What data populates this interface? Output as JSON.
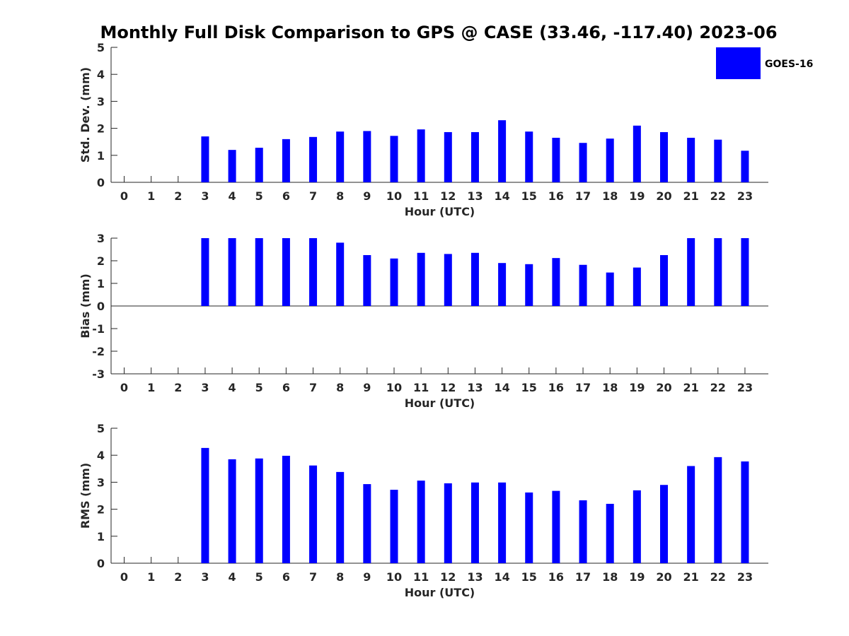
{
  "chart_data": {
    "title": "Monthly Full Disk Comparison to GPS @ CASE (33.46, -117.40) 2023-06",
    "legend": {
      "label": "GOES-16",
      "color": "#0000ff",
      "placement": "top-right"
    },
    "bar_color": "#0000ff",
    "panels": [
      {
        "type": "bar",
        "xlabel": "Hour (UTC)",
        "ylabel": "Std. Dev. (mm)",
        "ylim": [
          0,
          5
        ],
        "yticks": [
          0,
          1,
          2,
          3,
          4,
          5
        ],
        "categories": [
          "0",
          "1",
          "2",
          "3",
          "4",
          "5",
          "6",
          "7",
          "8",
          "9",
          "10",
          "11",
          "12",
          "13",
          "14",
          "15",
          "16",
          "17",
          "18",
          "19",
          "20",
          "21",
          "22",
          "23"
        ],
        "series": [
          {
            "name": "GOES-16",
            "values": [
              null,
              null,
              null,
              1.7,
              1.2,
              1.28,
              1.6,
              1.68,
              1.88,
              1.9,
              1.72,
              1.96,
              1.86,
              1.86,
              2.3,
              1.88,
              1.65,
              1.46,
              1.62,
              2.1,
              1.86,
              1.65,
              1.58,
              1.17
            ]
          }
        ]
      },
      {
        "type": "bar",
        "xlabel": "Hour (UTC)",
        "ylabel": "Bias (mm)",
        "ylim": [
          -3,
          3
        ],
        "yticks": [
          -3,
          -2,
          -1,
          0,
          1,
          2,
          3
        ],
        "categories": [
          "0",
          "1",
          "2",
          "3",
          "4",
          "5",
          "6",
          "7",
          "8",
          "9",
          "10",
          "11",
          "12",
          "13",
          "14",
          "15",
          "16",
          "17",
          "18",
          "19",
          "20",
          "21",
          "22",
          "23"
        ],
        "series": [
          {
            "name": "GOES-16",
            "values": [
              null,
              null,
              null,
              3,
              3,
              3,
              3,
              3,
              2.8,
              2.25,
              2.1,
              2.35,
              2.3,
              2.35,
              1.9,
              1.85,
              2.12,
              1.82,
              1.48,
              1.7,
              2.25,
              3,
              3,
              3
            ]
          }
        ]
      },
      {
        "type": "bar",
        "xlabel": "Hour (UTC)",
        "ylabel": "RMS (mm)",
        "ylim": [
          0,
          5
        ],
        "yticks": [
          0,
          1,
          2,
          3,
          4,
          5
        ],
        "categories": [
          "0",
          "1",
          "2",
          "3",
          "4",
          "5",
          "6",
          "7",
          "8",
          "9",
          "10",
          "11",
          "12",
          "13",
          "14",
          "15",
          "16",
          "17",
          "18",
          "19",
          "20",
          "21",
          "22",
          "23"
        ],
        "series": [
          {
            "name": "GOES-16",
            "values": [
              null,
              null,
              null,
              4.27,
              3.85,
              3.88,
              3.98,
              3.62,
              3.38,
              2.93,
              2.72,
              3.06,
              2.96,
              2.99,
              2.99,
              2.62,
              2.68,
              2.33,
              2.2,
              2.7,
              2.9,
              3.6,
              3.93,
              3.77
            ]
          }
        ]
      }
    ]
  }
}
